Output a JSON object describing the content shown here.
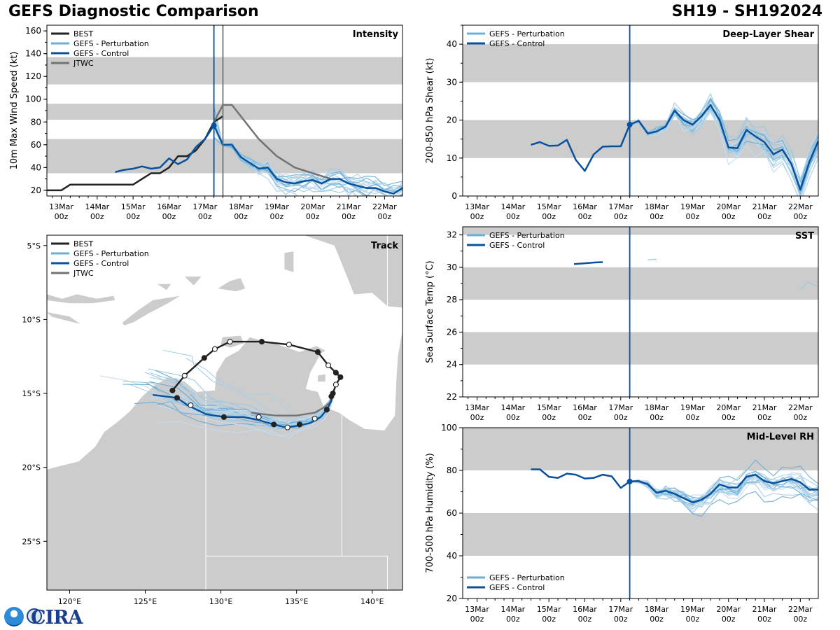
{
  "header": {
    "left": "GEFS Diagnostic Comparison",
    "right": "SH19 - SH192024"
  },
  "logo": {
    "text": "CIRA",
    "agency": "NOAA"
  },
  "colors": {
    "best": "#222222",
    "pert": "#9ecae1",
    "pert_legend": "#6baed6",
    "control": "#08519c",
    "jtwc": "#737373",
    "band": "#cccccc",
    "land": "#cccccc",
    "vline_control": "#08519c",
    "vline_jtwc": "#737373"
  },
  "time_axis": {
    "tick_days": [
      13,
      14,
      15,
      16,
      17,
      18,
      19,
      20,
      21,
      22
    ],
    "tick_labels": [
      [
        "13Mar",
        "00z"
      ],
      [
        "14Mar",
        "00z"
      ],
      [
        "15Mar",
        "00z"
      ],
      [
        "16Mar",
        "00z"
      ],
      [
        "17Mar",
        "00z"
      ],
      [
        "18Mar",
        "00z"
      ],
      [
        "19Mar",
        "00z"
      ],
      [
        "20Mar",
        "00z"
      ],
      [
        "21Mar",
        "00z"
      ],
      [
        "22Mar",
        "00z"
      ]
    ],
    "xlim": [
      12.6,
      22.5
    ],
    "init_time": 17.25,
    "jtwc_time": 17.5
  },
  "chart_data": [
    {
      "id": "intensity",
      "type": "line",
      "title": "Intensity",
      "ylabel": "10m Max Wind Speed (kt)",
      "ylim": [
        15,
        165
      ],
      "yticks": [
        20,
        40,
        60,
        80,
        100,
        120,
        140,
        160
      ],
      "bands": [
        [
          35,
          65
        ],
        [
          82,
          96
        ],
        [
          113,
          137
        ]
      ],
      "legend": [
        {
          "label": "BEST",
          "key": "best"
        },
        {
          "label": "GEFS - Perturbation",
          "key": "pert_legend"
        },
        {
          "label": "GEFS - Control",
          "key": "control"
        },
        {
          "label": "JTWC",
          "key": "jtwc"
        }
      ],
      "series": [
        {
          "name": "BEST",
          "color_key": "best",
          "t": [
            12.5,
            13,
            13.25,
            13.5,
            14,
            14.5,
            15,
            15.25,
            15.5,
            15.75,
            16,
            16.25,
            16.5,
            16.75,
            17,
            17.25,
            17.5
          ],
          "v": [
            20,
            20,
            25,
            25,
            25,
            25,
            25,
            30,
            35,
            35,
            40,
            50,
            50,
            55,
            65,
            80,
            85
          ]
        },
        {
          "name": "JTWC",
          "color_key": "jtwc",
          "t": [
            17.25,
            17.5,
            17.75,
            18,
            18.5,
            19,
            19.5,
            20,
            20.5
          ],
          "v": [
            80,
            95,
            95,
            85,
            65,
            50,
            40,
            35,
            30
          ]
        },
        {
          "name": "GEFS - Control",
          "color_key": "control",
          "t": [
            14.5,
            14.75,
            15,
            15.25,
            15.5,
            15.75,
            16,
            16.25,
            16.5,
            16.75,
            17,
            17.25,
            17.5,
            17.75,
            18,
            18.25,
            18.5,
            18.75,
            19,
            19.25,
            19.5,
            19.75,
            20,
            20.25,
            20.5,
            20.75,
            21,
            21.25,
            21.5,
            21.75,
            22,
            22.25,
            22.5
          ],
          "v": [
            36,
            38,
            39,
            41,
            39,
            40,
            48,
            43,
            47,
            58,
            65,
            77,
            60,
            60,
            49,
            44,
            39,
            40,
            30,
            27,
            26,
            28,
            29,
            26,
            30,
            30,
            26,
            24,
            22,
            22,
            19,
            17,
            22
          ]
        }
      ],
      "point": {
        "t": 17.25,
        "v": 77
      },
      "perturbations": {
        "from_series": "GEFS - Control",
        "t_start": 17.25,
        "count": 20
      }
    },
    {
      "id": "shear",
      "type": "line",
      "title": "Deep-Layer Shear",
      "ylabel": "200-850 hPa Shear (kt)",
      "ylim": [
        0,
        45
      ],
      "yticks": [
        0,
        10,
        20,
        30,
        40
      ],
      "bands": [
        [
          10,
          20
        ],
        [
          30,
          40
        ]
      ],
      "legend": [
        {
          "label": "GEFS - Perturbation",
          "key": "pert_legend"
        },
        {
          "label": "GEFS - Control",
          "key": "control"
        }
      ],
      "series": [
        {
          "name": "GEFS - Control",
          "color_key": "control",
          "t": [
            14.5,
            14.75,
            15,
            15.25,
            15.5,
            15.75,
            16,
            16.25,
            16.5,
            16.75,
            17,
            17.25,
            17.5,
            17.75,
            18,
            18.25,
            18.5,
            18.75,
            19,
            19.25,
            19.5,
            19.75,
            20,
            20.25,
            20.5,
            20.75,
            21,
            21.25,
            21.5,
            21.75,
            22,
            22.25,
            22.5
          ],
          "v": [
            13.5,
            14.2,
            13.2,
            13.3,
            14.8,
            9.5,
            6.6,
            11,
            13,
            13.1,
            13.1,
            18.8,
            19.8,
            16.5,
            17,
            18.3,
            22.5,
            20,
            18.8,
            21,
            24,
            20,
            12.8,
            12.6,
            17.4,
            15.7,
            14.2,
            11,
            12.2,
            8.5,
            1.6,
            9,
            14.5
          ]
        }
      ],
      "point": {
        "t": 17.25,
        "v": 18.8
      },
      "perturbations": {
        "from_series": "GEFS - Control",
        "t_start": 17.25,
        "count": 20
      }
    },
    {
      "id": "sst",
      "type": "line",
      "title": "SST",
      "ylabel": "Sea Surface Temp (°C)",
      "ylim": [
        22,
        32.5
      ],
      "yticks": [
        22,
        24,
        26,
        28,
        30,
        32
      ],
      "bands": [
        [
          24,
          26
        ],
        [
          28,
          30
        ],
        [
          32,
          33
        ]
      ],
      "legend": [
        {
          "label": "GEFS - Perturbation",
          "key": "pert_legend"
        },
        {
          "label": "GEFS - Control",
          "key": "control"
        }
      ],
      "series": [
        {
          "name": "GEFS - Control",
          "color_key": "control",
          "t": [
            15.7,
            16,
            16.3,
            16.5
          ],
          "v": [
            30.2,
            30.25,
            30.3,
            30.32
          ]
        },
        {
          "name": "GEFS - Perturbation A",
          "color_key": "pert",
          "t": [
            17.75,
            18
          ],
          "v": [
            30.45,
            30.5
          ]
        },
        {
          "name": "GEFS - Perturbation B",
          "color_key": "pert",
          "t": [
            22,
            22.2,
            22.5
          ],
          "v": [
            28.6,
            29.1,
            28.8
          ]
        }
      ]
    },
    {
      "id": "rh",
      "type": "line",
      "title": "Mid-Level RH",
      "ylabel": "700-500 hPa Humidity (%)",
      "ylim": [
        20,
        100
      ],
      "yticks": [
        20,
        40,
        60,
        80,
        100
      ],
      "bands": [
        [
          40,
          60
        ],
        [
          80,
          100
        ]
      ],
      "legend_pos": "bottom-left",
      "legend": [
        {
          "label": "GEFS - Perturbation",
          "key": "pert_legend"
        },
        {
          "label": "GEFS - Control",
          "key": "control"
        }
      ],
      "series": [
        {
          "name": "GEFS - Control",
          "color_key": "control",
          "t": [
            14.5,
            14.75,
            15,
            15.25,
            15.5,
            15.75,
            16,
            16.25,
            16.5,
            16.75,
            17,
            17.25,
            17.5,
            17.75,
            18,
            18.25,
            18.5,
            18.75,
            19,
            19.25,
            19.5,
            19.75,
            20,
            20.25,
            20.5,
            20.75,
            21,
            21.25,
            21.5,
            21.75,
            22,
            22.25,
            22.5
          ],
          "v": [
            80.5,
            80.5,
            77,
            76.5,
            78.5,
            78,
            76.2,
            76.5,
            78,
            77.2,
            71.8,
            74.8,
            75,
            73.5,
            69.5,
            70.5,
            69,
            67,
            65,
            66.2,
            69,
            73.5,
            72,
            72,
            77,
            78,
            75,
            74,
            75,
            76,
            74.5,
            71,
            71
          ]
        }
      ],
      "point": {
        "t": 17.25,
        "v": 74.8
      },
      "perturbations": {
        "from_series": "GEFS - Control",
        "t_start": 17.25,
        "count": 20
      }
    },
    {
      "id": "track",
      "type": "map",
      "title": "Track",
      "lon_range": [
        118.5,
        142
      ],
      "lat_range": [
        -28.3,
        -4.3
      ],
      "lon_ticks": [
        120,
        125,
        130,
        135,
        140
      ],
      "lon_labels": [
        "120°E",
        "125°E",
        "130°E",
        "135°E",
        "140°E"
      ],
      "lat_ticks": [
        -5,
        -10,
        -15,
        -20,
        -25
      ],
      "lat_labels": [
        "5°S",
        "10°S",
        "15°S",
        "20°S",
        "25°S"
      ],
      "legend": [
        {
          "label": "BEST",
          "key": "best"
        },
        {
          "label": "GEFS - Perturbation",
          "key": "pert_legend"
        },
        {
          "label": "GEFS - Control",
          "key": "control"
        },
        {
          "label": "JTWC",
          "key": "jtwc"
        }
      ],
      "best_track": {
        "lon": [
          126.8,
          127.6,
          128.9,
          129.6,
          130.6,
          132.7,
          134.5,
          136.4,
          137.1,
          137.6,
          137.9,
          137.6,
          137.4
        ],
        "lat": [
          -14.8,
          -13.8,
          -12.6,
          -12.0,
          -11.5,
          -11.5,
          -11.7,
          -12.2,
          -13.1,
          -13.6,
          -13.9,
          -14.4,
          -15.0
        ],
        "filled": [
          true,
          false,
          true,
          false,
          false,
          true,
          false,
          true,
          false,
          true,
          true,
          false,
          true
        ]
      },
      "control_track": {
        "lon": [
          137.4,
          137.3,
          137.0,
          136.6,
          135.9,
          135.0,
          134.3,
          133.5,
          132.5,
          131.5,
          130.2,
          129.0,
          127.8,
          127.1,
          125.5
        ],
        "lat": [
          -15.0,
          -15.5,
          -16.1,
          -16.6,
          -17.0,
          -17.2,
          -17.3,
          -17.1,
          -16.8,
          -16.6,
          -16.6,
          -16.4,
          -15.8,
          -15.3,
          -15.1
        ]
      },
      "jtwc_track": {
        "lon": [
          137.4,
          137.2,
          136.9,
          136.2,
          135.0,
          133.6,
          132.0
        ],
        "lat": [
          -15.0,
          -15.6,
          -15.9,
          -16.3,
          -16.5,
          -16.5,
          -16.3
        ]
      },
      "control_markers": {
        "lon": [
          137.3,
          137.0,
          136.2,
          135.2,
          134.4,
          133.5,
          132.5,
          130.2,
          128.0,
          127.1
        ],
        "lat": [
          -15.2,
          -16.1,
          -16.7,
          -17.1,
          -17.3,
          -17.1,
          -16.6,
          -16.6,
          -15.8,
          -15.3
        ],
        "filled": [
          true,
          true,
          false,
          true,
          false,
          true,
          false,
          true,
          false,
          true
        ]
      }
    }
  ]
}
